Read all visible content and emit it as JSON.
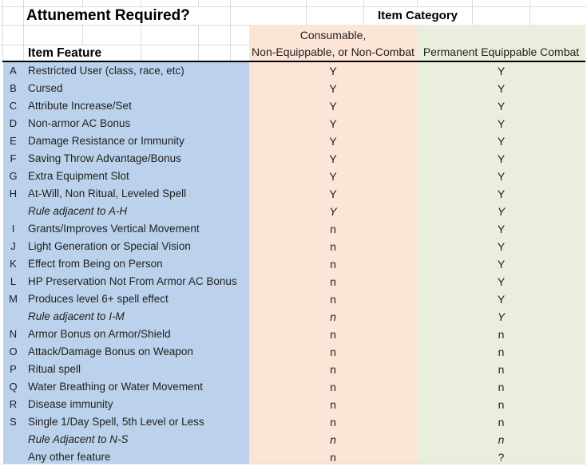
{
  "sheet": {
    "title": "Attunement Required?",
    "category_header": "Item Category",
    "feature_header": "Item Feature",
    "consumable_header_line1": "Consumable,",
    "consumable_header_line2": "Non-Equippable, or Non-Combat",
    "permanent_header": "Permanent Equippable Combat"
  },
  "colors": {
    "feature_column_bg": "#BCD2EC",
    "consumable_column_bg": "#FCE4D6",
    "permanent_column_bg": "#EAEFDD",
    "gridline": "#D6DBE4"
  },
  "rows": [
    {
      "letter": "A",
      "feature": "Restricted User (class, race, etc)",
      "consumable": "Y",
      "permanent": "Y",
      "italic": false
    },
    {
      "letter": "B",
      "feature": "Cursed",
      "consumable": "Y",
      "permanent": "Y",
      "italic": false
    },
    {
      "letter": "C",
      "feature": "Attribute Increase/Set",
      "consumable": "Y",
      "permanent": "Y",
      "italic": false
    },
    {
      "letter": "D",
      "feature": "Non-armor AC Bonus",
      "consumable": "Y",
      "permanent": "Y",
      "italic": false
    },
    {
      "letter": "E",
      "feature": "Damage Resistance or Immunity",
      "consumable": "Y",
      "permanent": "Y",
      "italic": false
    },
    {
      "letter": "F",
      "feature": "Saving Throw Advantage/Bonus",
      "consumable": "Y",
      "permanent": "Y",
      "italic": false
    },
    {
      "letter": "G",
      "feature": "Extra Equipment Slot",
      "consumable": "Y",
      "permanent": "Y",
      "italic": false
    },
    {
      "letter": "H",
      "feature": "At-Will, Non Ritual, Leveled Spell",
      "consumable": "Y",
      "permanent": "Y",
      "italic": false
    },
    {
      "letter": "",
      "feature": "Rule adjacent to A-H",
      "consumable": "Y",
      "permanent": "Y",
      "italic": true
    },
    {
      "letter": "I",
      "feature": "Grants/Improves Vertical Movement",
      "consumable": "n",
      "permanent": "Y",
      "italic": false
    },
    {
      "letter": "J",
      "feature": "Light Generation or Special Vision",
      "consumable": "n",
      "permanent": "Y",
      "italic": false
    },
    {
      "letter": "K",
      "feature": "Effect from Being on Person",
      "consumable": "n",
      "permanent": "Y",
      "italic": false
    },
    {
      "letter": "L",
      "feature": "HP Preservation Not From Armor AC Bonus",
      "consumable": "n",
      "permanent": "Y",
      "italic": false
    },
    {
      "letter": "M",
      "feature": "Produces level 6+ spell effect",
      "consumable": "n",
      "permanent": "Y",
      "italic": false
    },
    {
      "letter": "",
      "feature": "Rule adjacent to I-M",
      "consumable": "n",
      "permanent": "Y",
      "italic": true
    },
    {
      "letter": "N",
      "feature": "Armor Bonus on Armor/Shield",
      "consumable": "n",
      "permanent": "n",
      "italic": false
    },
    {
      "letter": "O",
      "feature": "Attack/Damage Bonus on Weapon",
      "consumable": "n",
      "permanent": "n",
      "italic": false
    },
    {
      "letter": "P",
      "feature": "Ritual spell",
      "consumable": "n",
      "permanent": "n",
      "italic": false
    },
    {
      "letter": "Q",
      "feature": "Water Breathing or Water Movement",
      "consumable": "n",
      "permanent": "n",
      "italic": false
    },
    {
      "letter": "R",
      "feature": "Disease immunity",
      "consumable": "n",
      "permanent": "n",
      "italic": false
    },
    {
      "letter": "S",
      "feature": "Single 1/Day Spell, 5th Level or Less",
      "consumable": "n",
      "permanent": "n",
      "italic": false
    },
    {
      "letter": "",
      "feature": "Rule Adjacent to N-S",
      "consumable": "n",
      "permanent": "n",
      "italic": true
    },
    {
      "letter": "",
      "feature": "Any other feature",
      "consumable": "n",
      "permanent": "?",
      "italic": false
    }
  ]
}
